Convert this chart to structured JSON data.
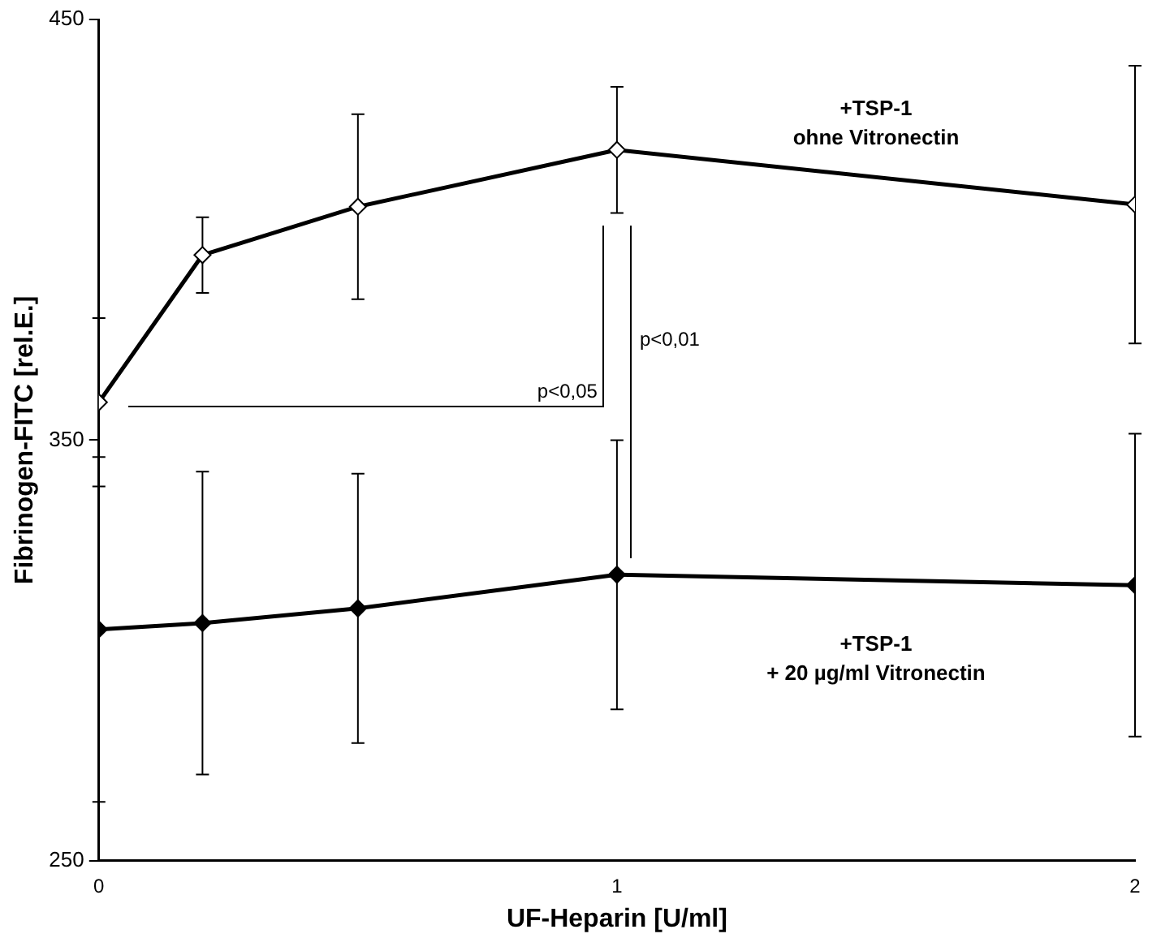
{
  "chart_data": {
    "type": "line",
    "xlabel": "UF-Heparin [U/ml]",
    "ylabel": "Fibrinogen-FITC [rel.E.]",
    "x": [
      0,
      0.2,
      0.5,
      1,
      2
    ],
    "series": [
      {
        "name": "+TSP-1\nohne Vitronectin",
        "color": "#000000",
        "values": [
          359,
          394,
          405.5,
          419,
          406
        ],
        "errors": [
          20,
          9,
          22,
          15,
          33
        ]
      },
      {
        "name": "+TSP-1\n+ 20 µg/ml Vitronectin",
        "color": "#000000",
        "values": [
          305,
          306.5,
          310,
          318,
          315.5
        ],
        "errors": [
          41,
          36,
          32,
          32,
          36
        ]
      }
    ],
    "xlim": [
      0,
      2
    ],
    "xticks": [
      0,
      1,
      2
    ],
    "ylim": [
      250,
      450
    ],
    "yticks": [
      250,
      350,
      450
    ],
    "grid": false,
    "legend": false,
    "marker": "diamond",
    "line_style": "solid",
    "annotations": [
      "p<0,05",
      "p<0,01"
    ]
  }
}
